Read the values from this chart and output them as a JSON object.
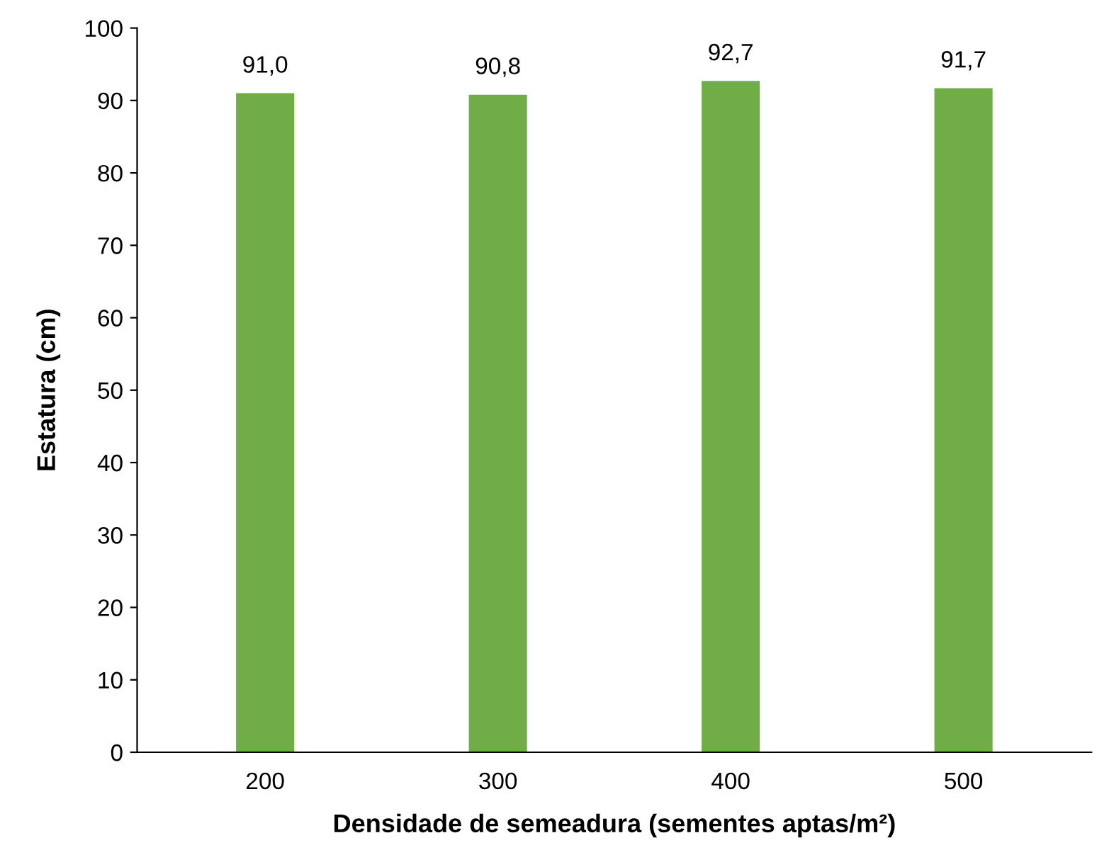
{
  "chart_data": {
    "type": "bar",
    "xlabel": "Densidade de semeadura (sementes aptas/m²)",
    "ylabel": "Estatura (cm)",
    "categories": [
      "200",
      "300",
      "400",
      "500"
    ],
    "values": [
      91.0,
      90.8,
      92.7,
      91.7
    ],
    "value_labels": [
      "91,0",
      "90,8",
      "92,7",
      "91,7"
    ],
    "color": "#70ad47",
    "ylim": [
      0,
      100
    ],
    "yticks": [
      0,
      10,
      20,
      30,
      40,
      50,
      60,
      70,
      80,
      90,
      100
    ],
    "grid": false,
    "legend": false
  }
}
